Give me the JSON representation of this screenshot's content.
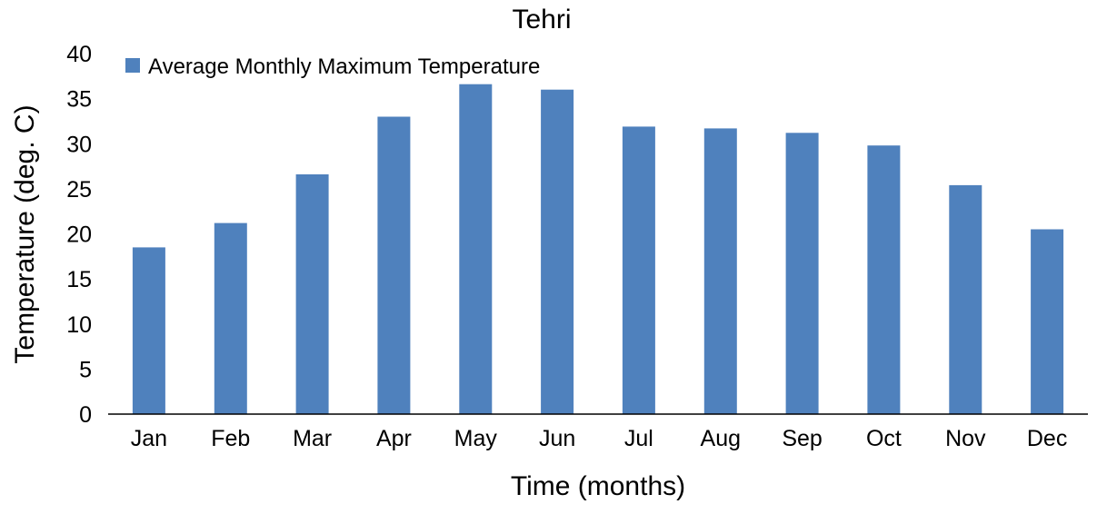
{
  "chart_data": {
    "type": "bar",
    "title": "Tehri",
    "xlabel": "Time (months)",
    "ylabel": "Temperature (deg. C)",
    "categories": [
      "Jan",
      "Feb",
      "Mar",
      "Apr",
      "May",
      "Jun",
      "Jul",
      "Aug",
      "Sep",
      "Oct",
      "Nov",
      "Dec"
    ],
    "series": [
      {
        "name": "Average Monthly Maximum Temperature",
        "values": [
          18.5,
          21.2,
          26.6,
          33.0,
          36.6,
          36.0,
          31.9,
          31.7,
          31.2,
          29.8,
          25.4,
          20.5
        ],
        "color": "#4F81BD"
      }
    ],
    "ylim": [
      0,
      40
    ],
    "yticks": [
      "0",
      "5",
      "10",
      "15",
      "20",
      "25",
      "30",
      "35",
      "40"
    ],
    "grid": false,
    "legend_position": "top-left"
  }
}
